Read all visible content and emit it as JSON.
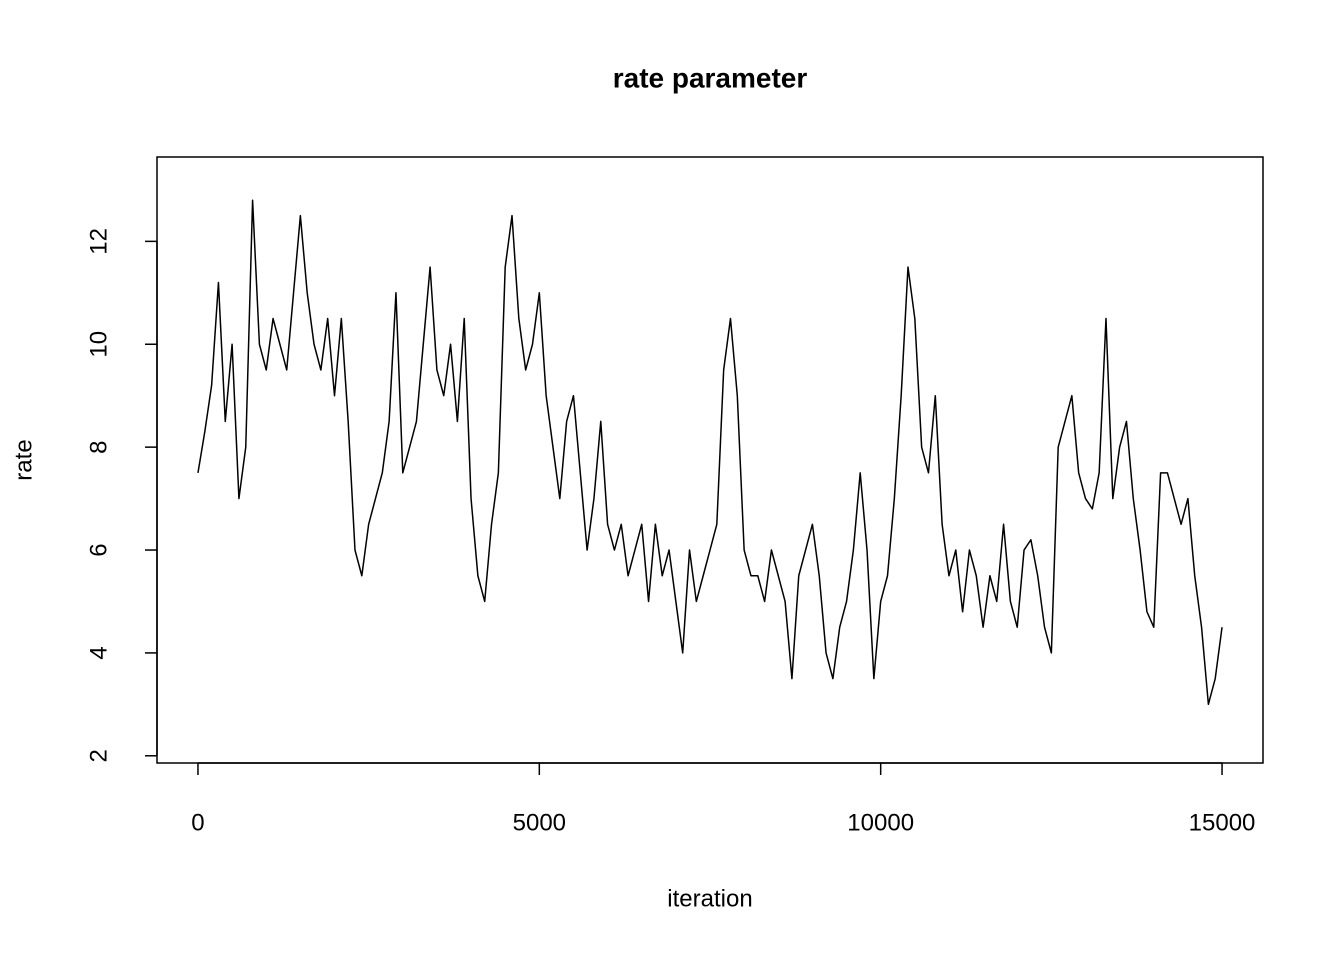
{
  "chart_data": {
    "type": "line",
    "title": "rate parameter",
    "x_label": "iteration",
    "y_label": "rate",
    "color": "#000000",
    "x": [
      0,
      100,
      200,
      300,
      400,
      500,
      600,
      700,
      800,
      900,
      1000,
      1100,
      1200,
      1300,
      1400,
      1500,
      1600,
      1700,
      1800,
      1900,
      2000,
      2100,
      2200,
      2300,
      2400,
      2500,
      2600,
      2700,
      2800,
      2900,
      3000,
      3100,
      3200,
      3300,
      3400,
      3500,
      3600,
      3700,
      3800,
      3900,
      4000,
      4100,
      4200,
      4300,
      4400,
      4500,
      4600,
      4700,
      4800,
      4900,
      5000,
      5100,
      5200,
      5300,
      5400,
      5500,
      5600,
      5700,
      5800,
      5900,
      6000,
      6100,
      6200,
      6300,
      6400,
      6500,
      6600,
      6700,
      6800,
      6900,
      7000,
      7100,
      7200,
      7300,
      7400,
      7500,
      7600,
      7700,
      7800,
      7900,
      8000,
      8100,
      8200,
      8300,
      8400,
      8500,
      8600,
      8700,
      8800,
      8900,
      9000,
      9100,
      9200,
      9300,
      9400,
      9500,
      9600,
      9700,
      9800,
      9900,
      10000,
      10100,
      10200,
      10300,
      10400,
      10500,
      10600,
      10700,
      10800,
      10900,
      11000,
      11100,
      11200,
      11300,
      11400,
      11500,
      11600,
      11700,
      11800,
      11900,
      12000,
      12100,
      12200,
      12300,
      12400,
      12500,
      12600,
      12700,
      12800,
      12900,
      13000,
      13100,
      13200,
      13300,
      13400,
      13500,
      13600,
      13700,
      13800,
      13900,
      14000,
      14100,
      14200,
      14300,
      14400,
      14500,
      14600,
      14700,
      14800,
      14900,
      15000
    ],
    "values": [
      7.5,
      8.3,
      9.2,
      11.2,
      8.5,
      10,
      7,
      8,
      12.8,
      10,
      9.5,
      10.5,
      10,
      9.5,
      11,
      12.5,
      11,
      10,
      9.5,
      10.5,
      9,
      10.5,
      8.5,
      6,
      5.5,
      6.5,
      7,
      7.5,
      8.5,
      11,
      7.5,
      8,
      8.5,
      10,
      11.5,
      9.5,
      9,
      10,
      8.5,
      10.5,
      7,
      5.5,
      5,
      6.5,
      7.5,
      11.5,
      12.5,
      10.5,
      9.5,
      10,
      11,
      9,
      8,
      7,
      8.5,
      9,
      7.5,
      6,
      7,
      8.5,
      6.5,
      6,
      6.5,
      5.5,
      6,
      6.5,
      5,
      6.5,
      5.5,
      6,
      5,
      4,
      6,
      5,
      5.5,
      6,
      6.5,
      9.5,
      10.5,
      9,
      6,
      5.5,
      5.5,
      5,
      6,
      5.5,
      5,
      3.5,
      5.5,
      6,
      6.5,
      5.5,
      4,
      3.5,
      4.5,
      5,
      6,
      7.5,
      6,
      3.5,
      5,
      5.5,
      7,
      9,
      11.5,
      10.5,
      8,
      7.5,
      9,
      6.5,
      5.5,
      6,
      4.8,
      6,
      5.5,
      4.5,
      5.5,
      5,
      6.5,
      5,
      4.5,
      6,
      6.2,
      5.5,
      4.5,
      4,
      8,
      8.5,
      9,
      7.5,
      7,
      6.8,
      7.5,
      10.5,
      7,
      8,
      8.5,
      7,
      6,
      4.8,
      4.5,
      7.5,
      7.5,
      7,
      6.5,
      7,
      5.5,
      4.5,
      3,
      3.5,
      4.5
    ],
    "xlim": [
      -600,
      15600
    ],
    "ylim": [
      1.86,
      13.64
    ],
    "xticks": [
      0,
      5000,
      10000,
      15000
    ],
    "yticks": [
      2,
      4,
      6,
      8,
      10,
      12
    ]
  }
}
